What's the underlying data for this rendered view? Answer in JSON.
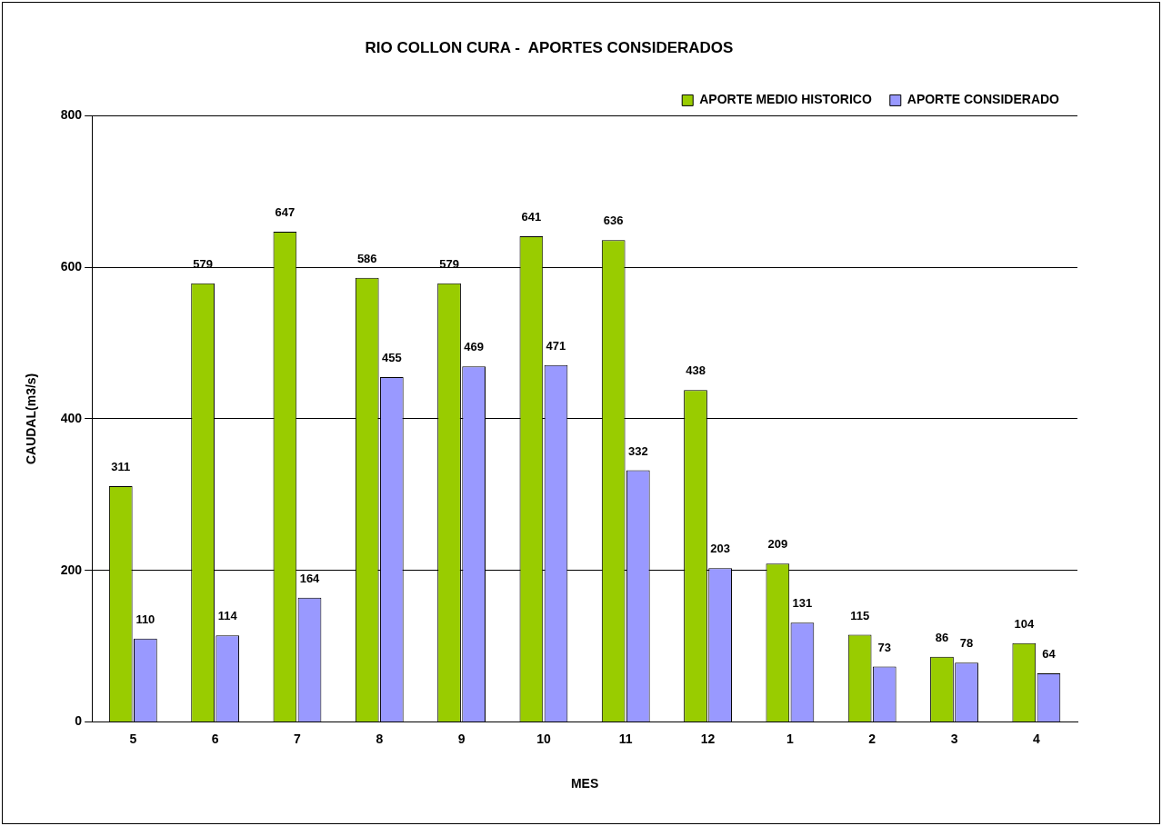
{
  "chart_data": {
    "type": "bar",
    "title": "RIO COLLON CURA -  APORTES CONSIDERADOS",
    "xlabel": "MES",
    "ylabel": "CAUDAL(m3/s)",
    "categories": [
      "5",
      "6",
      "7",
      "8",
      "9",
      "10",
      "11",
      "12",
      "1",
      "2",
      "3",
      "4"
    ],
    "series": [
      {
        "name": "APORTE MEDIO HISTORICO",
        "color": "#99cc00",
        "values": [
          311,
          579,
          647,
          586,
          579,
          641,
          636,
          438,
          209,
          115,
          86,
          104
        ]
      },
      {
        "name": "APORTE CONSIDERADO",
        "color": "#9999ff",
        "values": [
          110,
          114,
          164,
          455,
          469,
          471,
          332,
          203,
          131,
          73,
          78,
          64
        ]
      }
    ],
    "ylim": [
      0,
      800
    ],
    "yticks": [
      0,
      200,
      400,
      600,
      800
    ],
    "grid": "y",
    "legend": "top right",
    "data_labels": true
  }
}
